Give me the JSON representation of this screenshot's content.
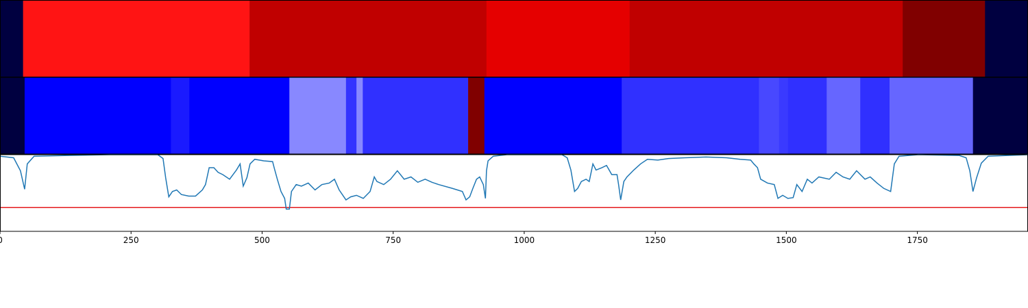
{
  "chart_data": [
    {
      "type": "segments",
      "xlim": [
        0,
        1961
      ],
      "starts": [
        0,
        44,
        476,
        928,
        1201,
        1722,
        1879
      ],
      "ends": [
        44,
        476,
        928,
        1201,
        1722,
        1879,
        1961
      ],
      "colors": [
        "#000040",
        "#ff1414",
        "#c00000",
        "#e50000",
        "#c00000",
        "#800000",
        "#000040"
      ]
    },
    {
      "type": "segments",
      "xlim": [
        0,
        1961
      ],
      "starts": [
        0,
        47,
        326,
        361,
        552,
        660,
        680,
        692,
        893,
        924,
        1186,
        1448,
        1486,
        1503,
        1577,
        1641,
        1697,
        1856
      ],
      "ends": [
        47,
        326,
        361,
        552,
        660,
        680,
        692,
        893,
        924,
        1186,
        1448,
        1486,
        1503,
        1577,
        1641,
        1697,
        1856,
        1961
      ],
      "colors": [
        "#000040",
        "#0000ff",
        "#1a1aff",
        "#0000ff",
        "#8888ff",
        "#3333ff",
        "#8888ff",
        "#3030ff",
        "#800000",
        "#0000ff",
        "#3030ff",
        "#4848ff",
        "#3a3aff",
        "#3030ff",
        "#6666ff",
        "#3030ff",
        "#6666ff",
        "#000040"
      ]
    },
    {
      "type": "line",
      "xlim": [
        0,
        1961
      ],
      "ylim": [
        0,
        1
      ],
      "xticks": [
        0,
        250,
        500,
        750,
        1000,
        1250,
        1500,
        1750
      ],
      "color": "#1f77b4",
      "threshold": 0.31,
      "threshold_color": "#e41a1c",
      "x": [
        0,
        26,
        39,
        47,
        52,
        65,
        131,
        209,
        301,
        311,
        316,
        322,
        329,
        337,
        346,
        360,
        373,
        386,
        392,
        399,
        408,
        416,
        425,
        438,
        451,
        458,
        464,
        471,
        477,
        486,
        503,
        520,
        523,
        529,
        536,
        543,
        546,
        552,
        556,
        565,
        575,
        588,
        601,
        614,
        628,
        638,
        647,
        660,
        669,
        680,
        693,
        706,
        714,
        719,
        732,
        745,
        758,
        771,
        784,
        797,
        811,
        824,
        837,
        863,
        882,
        889,
        896,
        902,
        909,
        915,
        922,
        926,
        928,
        931,
        941,
        967,
        1072,
        1082,
        1089,
        1096,
        1102,
        1109,
        1118,
        1124,
        1131,
        1137,
        1148,
        1157,
        1167,
        1177,
        1180,
        1184,
        1190,
        1196,
        1209,
        1222,
        1235,
        1255,
        1275,
        1307,
        1347,
        1386,
        1412,
        1432,
        1438,
        1445,
        1451,
        1464,
        1477,
        1484,
        1493,
        1503,
        1513,
        1520,
        1530,
        1540,
        1549,
        1562,
        1582,
        1595,
        1608,
        1621,
        1634,
        1650,
        1660,
        1673,
        1686,
        1699,
        1706,
        1715,
        1752,
        1830,
        1843,
        1850,
        1856,
        1863,
        1872,
        1885,
        1961
      ],
      "values": [
        0.98,
        0.96,
        0.79,
        0.55,
        0.88,
        0.98,
        0.99,
        1.0,
        1.0,
        0.95,
        0.7,
        0.45,
        0.52,
        0.54,
        0.48,
        0.46,
        0.46,
        0.54,
        0.61,
        0.83,
        0.83,
        0.77,
        0.74,
        0.68,
        0.8,
        0.88,
        0.59,
        0.7,
        0.88,
        0.94,
        0.92,
        0.91,
        0.83,
        0.68,
        0.52,
        0.43,
        0.29,
        0.29,
        0.52,
        0.61,
        0.59,
        0.63,
        0.54,
        0.61,
        0.63,
        0.68,
        0.54,
        0.41,
        0.45,
        0.47,
        0.43,
        0.52,
        0.71,
        0.65,
        0.61,
        0.68,
        0.79,
        0.68,
        0.71,
        0.64,
        0.68,
        0.64,
        0.61,
        0.56,
        0.52,
        0.41,
        0.45,
        0.56,
        0.68,
        0.71,
        0.61,
        0.43,
        0.79,
        0.92,
        0.98,
        1.0,
        1.0,
        0.96,
        0.8,
        0.52,
        0.56,
        0.65,
        0.68,
        0.65,
        0.88,
        0.8,
        0.83,
        0.86,
        0.74,
        0.74,
        0.61,
        0.41,
        0.65,
        0.71,
        0.8,
        0.88,
        0.94,
        0.93,
        0.95,
        0.96,
        0.97,
        0.96,
        0.94,
        0.93,
        0.88,
        0.83,
        0.68,
        0.63,
        0.61,
        0.43,
        0.47,
        0.43,
        0.44,
        0.61,
        0.52,
        0.68,
        0.63,
        0.71,
        0.68,
        0.77,
        0.71,
        0.68,
        0.79,
        0.68,
        0.71,
        0.63,
        0.56,
        0.52,
        0.88,
        0.98,
        1.0,
        0.99,
        0.96,
        0.79,
        0.52,
        0.7,
        0.89,
        0.98,
        1.0
      ]
    }
  ]
}
